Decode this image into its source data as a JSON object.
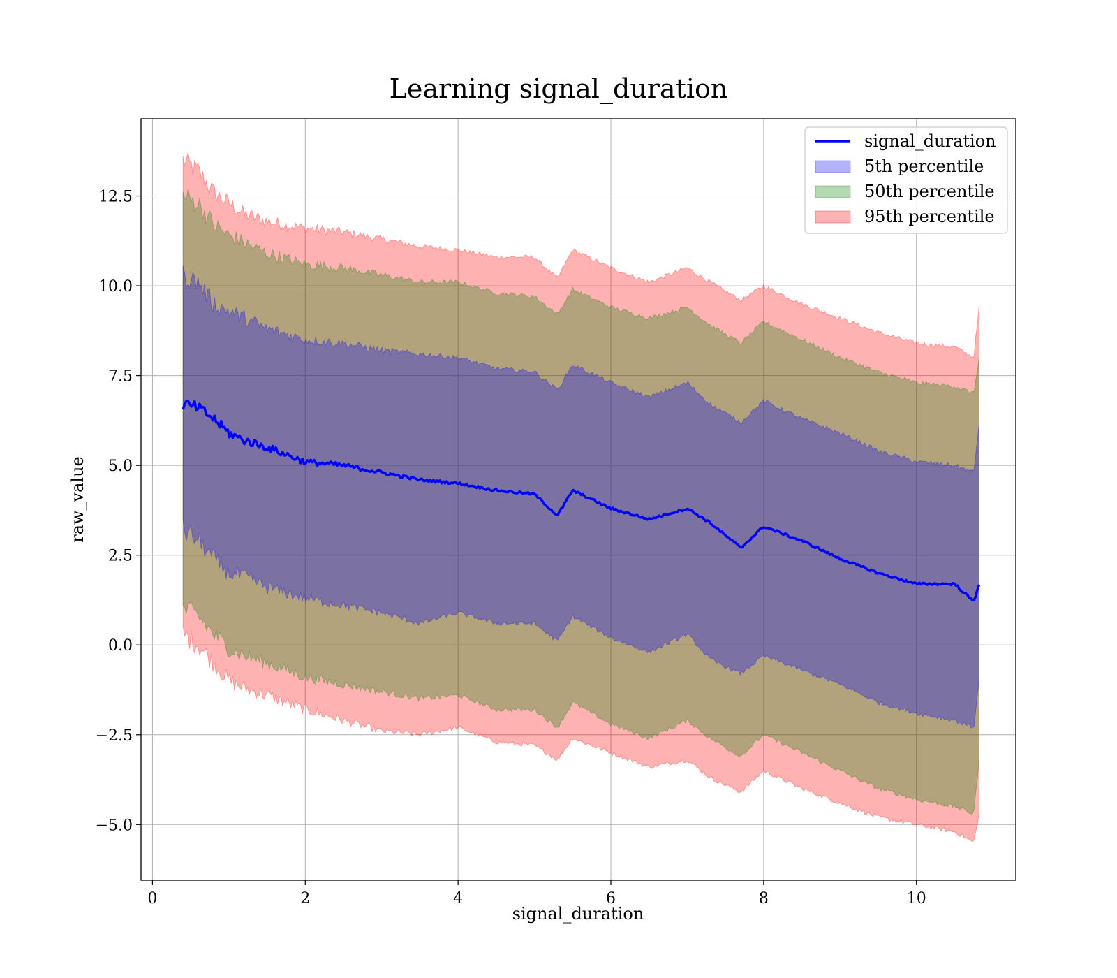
{
  "chart_data": {
    "type": "area",
    "title": "Learning signal_duration",
    "xlabel": "signal_duration",
    "ylabel": "raw_value",
    "xlim": [
      -0.15,
      11.3
    ],
    "ylim": [
      -6.55,
      14.65
    ],
    "x_ticks": [
      0,
      2,
      4,
      6,
      8,
      10
    ],
    "x_tick_labels": [
      "0",
      "2",
      "4",
      "6",
      "8",
      "10"
    ],
    "y_ticks": [
      -5.0,
      -2.5,
      0.0,
      2.5,
      5.0,
      7.5,
      10.0,
      12.5
    ],
    "y_tick_labels": [
      "−5.0",
      "−2.5",
      "0.0",
      "2.5",
      "5.0",
      "7.5",
      "10.0",
      "12.5"
    ],
    "grid": true,
    "legend_position": "top-right",
    "x": [
      0.4,
      0.6,
      0.8,
      1.0,
      1.2,
      1.5,
      2.0,
      2.5,
      3.0,
      3.5,
      4.0,
      4.5,
      5.0,
      5.3,
      5.5,
      6.0,
      6.5,
      7.0,
      7.3,
      7.7,
      8.0,
      8.5,
      9.0,
      9.5,
      10.0,
      10.5,
      10.75,
      10.82
    ],
    "series": [
      {
        "name": "signal_duration",
        "kind": "line",
        "color": "#0000ff",
        "values": [
          6.7,
          6.6,
          6.3,
          5.9,
          5.7,
          5.5,
          5.1,
          5.0,
          4.8,
          4.6,
          4.5,
          4.3,
          4.2,
          3.6,
          4.3,
          3.8,
          3.5,
          3.8,
          3.4,
          2.7,
          3.3,
          2.9,
          2.4,
          2.0,
          1.7,
          1.7,
          1.2,
          1.7
        ]
      },
      {
        "name": "5th percentile",
        "kind": "band",
        "color": "#0000ff",
        "lower": [
          3.2,
          2.9,
          2.4,
          2.0,
          1.9,
          1.6,
          1.3,
          1.1,
          0.9,
          0.6,
          0.9,
          0.6,
          0.6,
          0.1,
          0.8,
          0.2,
          -0.2,
          0.3,
          -0.4,
          -0.8,
          -0.3,
          -0.7,
          -1.1,
          -1.6,
          -1.9,
          -2.1,
          -2.3,
          -1.0
        ],
        "upper": [
          10.3,
          10.1,
          9.5,
          9.3,
          9.1,
          8.8,
          8.5,
          8.4,
          8.2,
          8.1,
          8.0,
          7.7,
          7.6,
          7.1,
          7.8,
          7.3,
          6.9,
          7.3,
          6.7,
          6.2,
          6.8,
          6.3,
          5.9,
          5.4,
          5.1,
          5.0,
          4.8,
          6.2
        ]
      },
      {
        "name": "50th percentile",
        "kind": "band",
        "color": "#008000",
        "lower": [
          1.0,
          0.8,
          0.3,
          -0.1,
          -0.3,
          -0.5,
          -0.9,
          -1.1,
          -1.3,
          -1.5,
          -1.4,
          -1.8,
          -1.8,
          -2.3,
          -1.6,
          -2.2,
          -2.6,
          -2.1,
          -2.6,
          -3.1,
          -2.5,
          -3.0,
          -3.5,
          -4.0,
          -4.3,
          -4.5,
          -4.7,
          -3.2
        ],
        "upper": [
          12.5,
          12.3,
          11.7,
          11.4,
          11.2,
          10.9,
          10.6,
          10.5,
          10.3,
          10.1,
          10.1,
          9.8,
          9.7,
          9.2,
          9.9,
          9.4,
          9.1,
          9.4,
          8.9,
          8.4,
          9.0,
          8.5,
          8.0,
          7.6,
          7.3,
          7.2,
          7.0,
          8.0
        ]
      },
      {
        "name": "95th percentile",
        "kind": "band",
        "color": "#ff0000",
        "lower": [
          0.3,
          0.0,
          -0.5,
          -1.0,
          -1.2,
          -1.4,
          -1.8,
          -2.1,
          -2.4,
          -2.5,
          -2.3,
          -2.7,
          -2.8,
          -3.2,
          -2.6,
          -3.0,
          -3.4,
          -3.2,
          -3.7,
          -4.1,
          -3.5,
          -4.0,
          -4.4,
          -4.8,
          -5.0,
          -5.2,
          -5.5,
          -4.7
        ],
        "upper": [
          13.5,
          13.2,
          12.6,
          12.3,
          12.0,
          11.8,
          11.6,
          11.5,
          11.3,
          11.1,
          11.0,
          10.8,
          10.8,
          10.2,
          11.0,
          10.5,
          10.1,
          10.5,
          10.1,
          9.6,
          10.0,
          9.5,
          9.1,
          8.7,
          8.4,
          8.3,
          8.0,
          9.4
        ]
      }
    ]
  }
}
